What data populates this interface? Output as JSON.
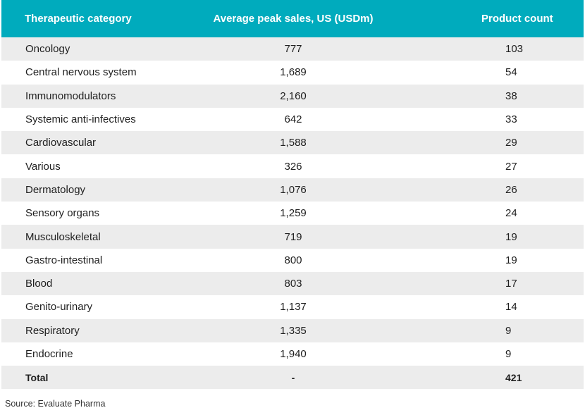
{
  "chart_data": {
    "type": "table",
    "columns": [
      "Therapeutic category",
      "Average peak sales, US (USDm)",
      "Product count"
    ],
    "rows": [
      {
        "category": "Oncology",
        "sales": "777",
        "count": "103"
      },
      {
        "category": "Central nervous system",
        "sales": "1,689",
        "count": "54"
      },
      {
        "category": "Immunomodulators",
        "sales": "2,160",
        "count": "38"
      },
      {
        "category": "Systemic anti-infectives",
        "sales": "642",
        "count": "33"
      },
      {
        "category": "Cardiovascular",
        "sales": "1,588",
        "count": "29"
      },
      {
        "category": "Various",
        "sales": "326",
        "count": "27"
      },
      {
        "category": "Dermatology",
        "sales": "1,076",
        "count": "26"
      },
      {
        "category": "Sensory organs",
        "sales": "1,259",
        "count": "24"
      },
      {
        "category": "Musculoskeletal",
        "sales": "719",
        "count": "19"
      },
      {
        "category": "Gastro-intestinal",
        "sales": "800",
        "count": "19"
      },
      {
        "category": "Blood",
        "sales": "803",
        "count": "17"
      },
      {
        "category": "Genito-urinary",
        "sales": "1,137",
        "count": "14"
      },
      {
        "category": "Respiratory",
        "sales": "1,335",
        "count": "9"
      },
      {
        "category": "Endocrine",
        "sales": "1,940",
        "count": "9"
      }
    ],
    "total": {
      "category": "Total",
      "sales": "-",
      "count": "421"
    },
    "header_color": "#00abbd",
    "stripe_color": "#ececec"
  },
  "source": "Source: Evaluate Pharma"
}
